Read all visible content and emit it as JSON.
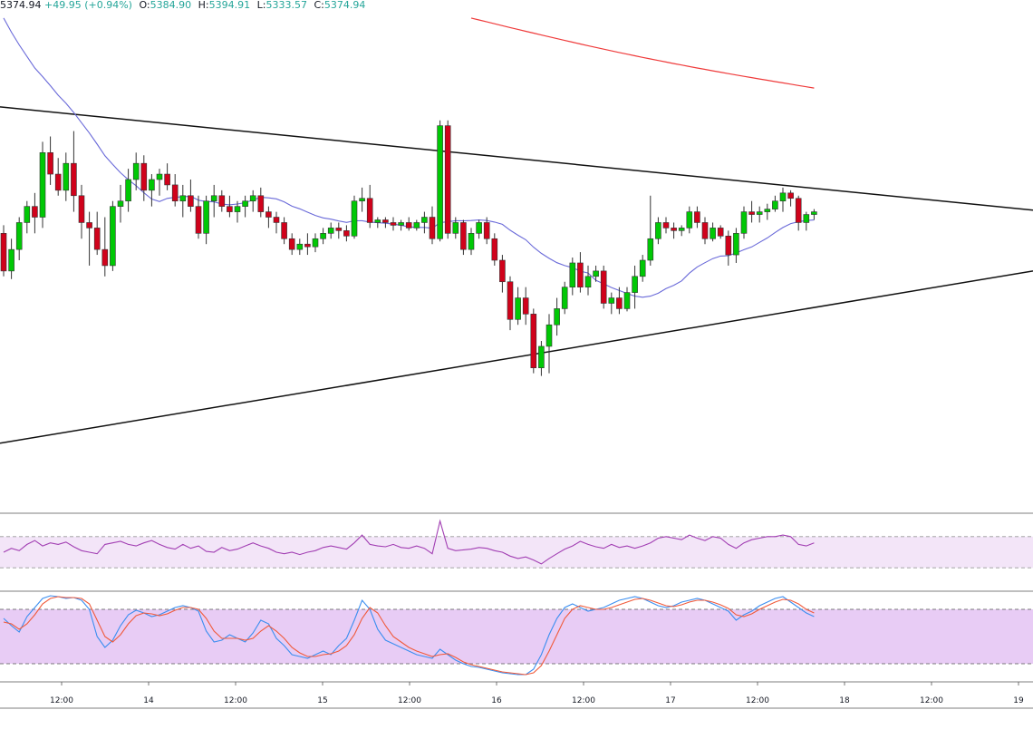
{
  "header": {
    "price": "5374.94",
    "change": "+49.95 (+0.94%)",
    "o_label": "O:",
    "o_value": "5384.90",
    "h_label": "H:",
    "h_value": "5394.91",
    "l_label": "L:",
    "l_value": "5333.57",
    "c_label": "C:",
    "c_value": "5374.94"
  },
  "colors": {
    "up": "#00c805",
    "down": "#d0021b",
    "sma_fast": "#6a6ad9",
    "sma_slow": "#ef3b3b",
    "trendline": "#111111",
    "rsi_line": "#a23fb3",
    "rsi_fill": "#f3e5f8",
    "stoch_fill": "#e8ccf5",
    "stoch_k": "#3b8ef0",
    "stoch_d": "#f05a3b"
  },
  "chart_data": {
    "type": "candlestick",
    "x_tick_labels": [
      "12:00",
      "14",
      "12:00",
      "15",
      "12:00",
      "16",
      "12:00",
      "17",
      "12:00",
      "18",
      "12:00",
      "19"
    ],
    "ylim": [
      4880,
      5800
    ],
    "candles": [
      [
        5390,
        5405,
        5310,
        5320
      ],
      [
        5320,
        5380,
        5305,
        5360
      ],
      [
        5360,
        5420,
        5340,
        5410
      ],
      [
        5410,
        5450,
        5390,
        5440
      ],
      [
        5440,
        5465,
        5390,
        5420
      ],
      [
        5420,
        5560,
        5400,
        5540
      ],
      [
        5540,
        5570,
        5480,
        5500
      ],
      [
        5500,
        5530,
        5460,
        5470
      ],
      [
        5470,
        5540,
        5450,
        5520
      ],
      [
        5520,
        5580,
        5430,
        5460
      ],
      [
        5460,
        5480,
        5380,
        5410
      ],
      [
        5410,
        5430,
        5330,
        5400
      ],
      [
        5400,
        5430,
        5350,
        5360
      ],
      [
        5360,
        5420,
        5310,
        5330
      ],
      [
        5330,
        5450,
        5320,
        5440
      ],
      [
        5440,
        5480,
        5410,
        5450
      ],
      [
        5450,
        5510,
        5430,
        5490
      ],
      [
        5490,
        5540,
        5470,
        5520
      ],
      [
        5520,
        5535,
        5450,
        5470
      ],
      [
        5470,
        5500,
        5440,
        5490
      ],
      [
        5490,
        5510,
        5460,
        5500
      ],
      [
        5500,
        5520,
        5470,
        5480
      ],
      [
        5480,
        5500,
        5440,
        5450
      ],
      [
        5450,
        5480,
        5420,
        5460
      ],
      [
        5460,
        5490,
        5430,
        5440
      ],
      [
        5440,
        5460,
        5380,
        5390
      ],
      [
        5390,
        5460,
        5370,
        5450
      ],
      [
        5450,
        5480,
        5420,
        5460
      ],
      [
        5460,
        5470,
        5430,
        5440
      ],
      [
        5440,
        5460,
        5420,
        5430
      ],
      [
        5430,
        5450,
        5410,
        5440
      ],
      [
        5440,
        5460,
        5420,
        5450
      ],
      [
        5450,
        5470,
        5430,
        5460
      ],
      [
        5460,
        5475,
        5420,
        5430
      ],
      [
        5430,
        5440,
        5400,
        5420
      ],
      [
        5420,
        5430,
        5390,
        5410
      ],
      [
        5410,
        5420,
        5370,
        5380
      ],
      [
        5380,
        5390,
        5350,
        5360
      ],
      [
        5360,
        5380,
        5350,
        5370
      ],
      [
        5370,
        5390,
        5350,
        5365
      ],
      [
        5365,
        5390,
        5355,
        5380
      ],
      [
        5380,
        5400,
        5370,
        5390
      ],
      [
        5390,
        5410,
        5380,
        5400
      ],
      [
        5400,
        5410,
        5380,
        5395
      ],
      [
        5395,
        5405,
        5375,
        5385
      ],
      [
        5385,
        5460,
        5380,
        5450
      ],
      [
        5450,
        5475,
        5430,
        5455
      ],
      [
        5455,
        5480,
        5400,
        5410
      ],
      [
        5410,
        5420,
        5400,
        5415
      ],
      [
        5415,
        5420,
        5400,
        5410
      ],
      [
        5410,
        5420,
        5395,
        5405
      ],
      [
        5405,
        5415,
        5395,
        5410
      ],
      [
        5410,
        5420,
        5395,
        5400
      ],
      [
        5400,
        5415,
        5395,
        5410
      ],
      [
        5410,
        5430,
        5390,
        5420
      ],
      [
        5420,
        5440,
        5370,
        5380
      ],
      [
        5380,
        5600,
        5375,
        5590
      ],
      [
        5590,
        5600,
        5380,
        5390
      ],
      [
        5390,
        5420,
        5380,
        5410
      ],
      [
        5410,
        5415,
        5350,
        5360
      ],
      [
        5360,
        5400,
        5350,
        5390
      ],
      [
        5390,
        5415,
        5380,
        5410
      ],
      [
        5410,
        5420,
        5370,
        5380
      ],
      [
        5380,
        5390,
        5330,
        5340
      ],
      [
        5340,
        5350,
        5280,
        5300
      ],
      [
        5300,
        5310,
        5210,
        5230
      ],
      [
        5230,
        5290,
        5220,
        5270
      ],
      [
        5270,
        5290,
        5220,
        5240
      ],
      [
        5240,
        5250,
        5130,
        5140
      ],
      [
        5140,
        5190,
        5125,
        5180
      ],
      [
        5180,
        5240,
        5130,
        5220
      ],
      [
        5220,
        5270,
        5200,
        5250
      ],
      [
        5250,
        5300,
        5240,
        5290
      ],
      [
        5290,
        5345,
        5275,
        5335
      ],
      [
        5335,
        5355,
        5280,
        5290
      ],
      [
        5290,
        5330,
        5275,
        5310
      ],
      [
        5310,
        5330,
        5300,
        5320
      ],
      [
        5320,
        5330,
        5250,
        5260
      ],
      [
        5260,
        5280,
        5240,
        5270
      ],
      [
        5270,
        5290,
        5240,
        5250
      ],
      [
        5250,
        5290,
        5245,
        5280
      ],
      [
        5280,
        5330,
        5250,
        5310
      ],
      [
        5310,
        5350,
        5300,
        5340
      ],
      [
        5340,
        5460,
        5330,
        5380
      ],
      [
        5380,
        5420,
        5370,
        5410
      ],
      [
        5410,
        5420,
        5390,
        5400
      ],
      [
        5400,
        5410,
        5380,
        5395
      ],
      [
        5395,
        5405,
        5385,
        5400
      ],
      [
        5400,
        5440,
        5390,
        5430
      ],
      [
        5430,
        5440,
        5400,
        5410
      ],
      [
        5410,
        5420,
        5370,
        5380
      ],
      [
        5380,
        5410,
        5375,
        5400
      ],
      [
        5400,
        5405,
        5380,
        5385
      ],
      [
        5385,
        5395,
        5330,
        5350
      ],
      [
        5350,
        5400,
        5335,
        5390
      ],
      [
        5390,
        5440,
        5380,
        5430
      ],
      [
        5430,
        5450,
        5410,
        5425
      ],
      [
        5425,
        5440,
        5410,
        5430
      ],
      [
        5430,
        5445,
        5415,
        5435
      ],
      [
        5435,
        5460,
        5430,
        5450
      ],
      [
        5450,
        5475,
        5430,
        5465
      ],
      [
        5465,
        5470,
        5440,
        5455
      ],
      [
        5455,
        5460,
        5395,
        5410
      ],
      [
        5410,
        5430,
        5395,
        5425
      ],
      [
        5425,
        5435,
        5415,
        5430
      ]
    ],
    "sma_fast_label": "",
    "sma_slow_label": "",
    "rsi": {
      "band": [
        30,
        70
      ],
      "values": [
        50,
        55,
        52,
        60,
        65,
        58,
        62,
        60,
        63,
        57,
        52,
        50,
        48,
        60,
        62,
        64,
        60,
        58,
        62,
        65,
        60,
        56,
        54,
        60,
        55,
        58,
        51,
        50,
        56,
        52,
        54,
        58,
        62,
        58,
        55,
        50,
        48,
        50,
        47,
        50,
        52,
        56,
        58,
        56,
        54,
        62,
        72,
        60,
        58,
        57,
        60,
        56,
        55,
        58,
        55,
        48,
        90,
        55,
        52,
        53,
        54,
        56,
        55,
        52,
        50,
        45,
        42,
        44,
        40,
        35,
        42,
        48,
        54,
        58,
        64,
        60,
        57,
        55,
        60,
        56,
        58,
        55,
        58,
        62,
        68,
        70,
        68,
        66,
        72,
        68,
        65,
        70,
        68,
        60,
        55,
        62,
        66,
        68,
        70,
        70,
        72,
        70,
        60,
        58,
        62
      ],
      "ylim": [
        0,
        100
      ]
    },
    "stochastic": {
      "band": [
        20,
        80
      ],
      "k": [
        70,
        62,
        55,
        72,
        82,
        92,
        95,
        94,
        92,
        93,
        90,
        80,
        50,
        38,
        46,
        62,
        74,
        79,
        76,
        72,
        74,
        78,
        82,
        84,
        82,
        78,
        56,
        44,
        46,
        52,
        48,
        44,
        54,
        68,
        64,
        48,
        40,
        30,
        28,
        26,
        30,
        34,
        30,
        40,
        48,
        68,
        90,
        80,
        58,
        46,
        42,
        38,
        34,
        30,
        28,
        26,
        36,
        30,
        24,
        20,
        17,
        16,
        14,
        12,
        10,
        9,
        8,
        8,
        14,
        30,
        52,
        70,
        82,
        86,
        82,
        78,
        80,
        82,
        86,
        90,
        92,
        94,
        92,
        88,
        84,
        82,
        84,
        88,
        90,
        92,
        90,
        86,
        82,
        78,
        68,
        74,
        78,
        84,
        88,
        92,
        94,
        88,
        82,
        76,
        72
      ],
      "d": [
        66,
        64,
        58,
        64,
        74,
        86,
        92,
        94,
        93,
        93,
        92,
        86,
        68,
        50,
        44,
        52,
        64,
        73,
        76,
        75,
        73,
        75,
        79,
        82,
        82,
        80,
        70,
        56,
        48,
        48,
        48,
        46,
        48,
        56,
        62,
        56,
        48,
        38,
        32,
        28,
        28,
        30,
        31,
        34,
        40,
        52,
        70,
        82,
        76,
        62,
        50,
        44,
        38,
        34,
        31,
        28,
        30,
        31,
        27,
        22,
        19,
        17,
        15,
        13,
        11,
        10,
        9,
        8,
        10,
        18,
        34,
        52,
        70,
        80,
        84,
        82,
        80,
        80,
        82,
        85,
        88,
        91,
        92,
        90,
        87,
        84,
        83,
        85,
        88,
        90,
        90,
        88,
        85,
        81,
        74,
        72,
        75,
        80,
        84,
        88,
        91,
        90,
        86,
        80,
        76
      ],
      "ylim": [
        0,
        100
      ]
    }
  }
}
